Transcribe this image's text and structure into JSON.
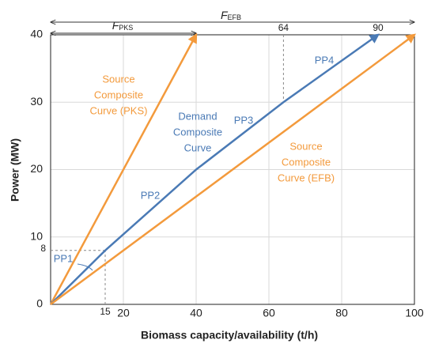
{
  "chart_data": {
    "type": "line",
    "xlabel": "Biomass capacity/availability  (t/h)",
    "ylabel": "Power (MW)",
    "xlim": [
      0,
      100
    ],
    "ylim": [
      0,
      40
    ],
    "xticks": [
      20,
      40,
      60,
      80,
      100
    ],
    "yticks": [
      0,
      10,
      20,
      30,
      40
    ],
    "grid": true,
    "series": [
      {
        "label": [
          "Source",
          "Composite",
          "Curve (PKS)"
        ],
        "color": "#f39a3c",
        "x": [
          0,
          40
        ],
        "values": [
          0,
          40
        ]
      },
      {
        "label": [
          "Demand",
          "Composite",
          "Curve"
        ],
        "color": "#4a7ab5",
        "x": [
          0,
          15,
          40,
          64,
          90
        ],
        "values": [
          0,
          8,
          20,
          30,
          40
        ]
      },
      {
        "label": [
          "Source",
          "Composite",
          "Curve (EFB)"
        ],
        "color": "#f39a3c",
        "x": [
          0,
          100
        ],
        "values": [
          0,
          40
        ]
      }
    ],
    "segment_labels": [
      "PP1",
      "PP2",
      "PP3",
      "PP4"
    ],
    "marker_labels": [
      {
        "axis": "x",
        "value": 15
      },
      {
        "axis": "y",
        "value": 8
      },
      {
        "axis": "x",
        "value": 64
      },
      {
        "axis": "x",
        "value": 90
      }
    ],
    "spans": [
      {
        "text": "F",
        "subscript": "PKS",
        "from": 0,
        "to": 40
      },
      {
        "text": "F",
        "subscript": "EFB",
        "from": 0,
        "to": 100
      }
    ]
  }
}
